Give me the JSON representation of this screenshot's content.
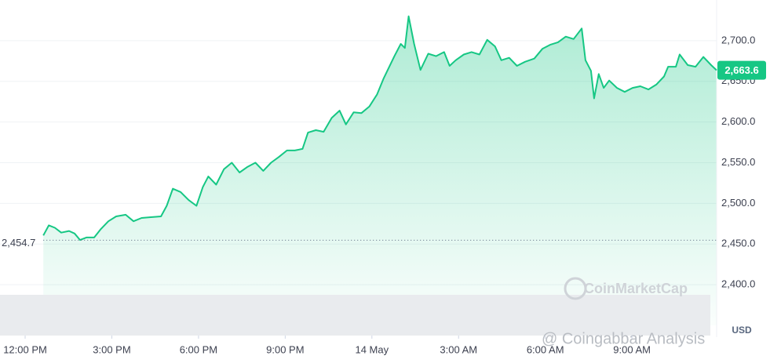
{
  "chart_data": {
    "type": "line",
    "xlim": [
      -0.87,
      23.93
    ],
    "xticks": [
      {
        "value": 0,
        "label": "12:00 PM"
      },
      {
        "value": 3,
        "label": "3:00 PM"
      },
      {
        "value": 6,
        "label": "6:00 PM"
      },
      {
        "value": 9,
        "label": "9:00 PM"
      },
      {
        "value": 12,
        "label": "14 May"
      },
      {
        "value": 15,
        "label": "3:00 AM"
      },
      {
        "value": 18,
        "label": "6:00 AM"
      },
      {
        "value": 21,
        "label": "9:00 AM"
      }
    ],
    "ylim": [
      2350,
      2750
    ],
    "yticks": [
      {
        "value": 2400,
        "label": "2,400.0"
      },
      {
        "value": 2450,
        "label": "2,450.0"
      },
      {
        "value": 2500,
        "label": "2,500.0"
      },
      {
        "value": 2550,
        "label": "2,550.0"
      },
      {
        "value": 2600,
        "label": "2,600.0"
      },
      {
        "value": 2650,
        "label": "2,650.0"
      },
      {
        "value": 2700,
        "label": "2,700.0"
      }
    ],
    "grid": true,
    "currency": "USD",
    "reference_line": {
      "value": 2454.7,
      "label": "2,454.7"
    },
    "current_price": {
      "value": 2663.6,
      "label": "2,663.6"
    },
    "watermarks": [
      "CoinMarketCap",
      "@ Coingabbar Analysis"
    ],
    "series": [
      {
        "color": "#16c784",
        "x": [
          0.63,
          0.82,
          1.03,
          1.25,
          1.52,
          1.71,
          1.9,
          2.12,
          2.39,
          2.61,
          2.88,
          3.15,
          3.48,
          3.75,
          4.03,
          4.35,
          4.7,
          4.9,
          5.11,
          5.38,
          5.66,
          5.93,
          6.15,
          6.34,
          6.61,
          6.88,
          7.15,
          7.42,
          7.7,
          7.97,
          8.24,
          8.51,
          8.78,
          9.06,
          9.33,
          9.6,
          9.79,
          10.06,
          10.33,
          10.61,
          10.88,
          11.1,
          11.37,
          11.64,
          11.91,
          12.18,
          12.4,
          12.59,
          12.78,
          13.0,
          13.14,
          13.27,
          13.46,
          13.68,
          13.95,
          14.22,
          14.5,
          14.69,
          14.9,
          15.18,
          15.45,
          15.72,
          15.99,
          16.26,
          16.48,
          16.75,
          17.02,
          17.3,
          17.62,
          17.9,
          18.17,
          18.44,
          18.71,
          18.98,
          19.26,
          19.39,
          19.58,
          19.69,
          19.85,
          20.02,
          20.21,
          20.48,
          20.75,
          21.02,
          21.29,
          21.57,
          21.84,
          22.11,
          22.25,
          22.52,
          22.65,
          22.93,
          23.2,
          23.47,
          23.74,
          23.93
        ],
        "values": [
          2460.6,
          2473,
          2470,
          2464,
          2466,
          2463,
          2455,
          2458,
          2458,
          2468,
          2478,
          2484,
          2486,
          2478,
          2482,
          2483,
          2484,
          2497,
          2518,
          2514,
          2504,
          2497,
          2520,
          2533,
          2523,
          2542,
          2550,
          2538,
          2545,
          2550,
          2540,
          2550,
          2557,
          2565,
          2565,
          2567,
          2587,
          2590,
          2588,
          2605,
          2614,
          2597,
          2612,
          2611,
          2619,
          2634,
          2653,
          2667,
          2681,
          2696,
          2691,
          2730,
          2696,
          2664,
          2684,
          2681,
          2686,
          2669,
          2676,
          2683,
          2686,
          2683,
          2701,
          2693,
          2676,
          2679,
          2669,
          2674,
          2678,
          2690,
          2695,
          2698,
          2705,
          2702,
          2715,
          2676,
          2663,
          2629,
          2659,
          2642,
          2651,
          2642,
          2637,
          2642,
          2644,
          2640,
          2646,
          2656,
          2668,
          2668,
          2683,
          2670,
          2668,
          2680,
          2670,
          2663.6
        ]
      }
    ]
  }
}
